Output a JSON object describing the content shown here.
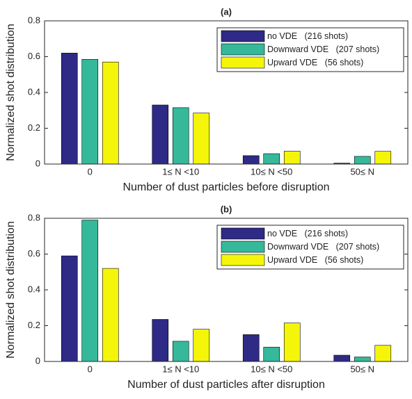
{
  "chart_data": [
    {
      "type": "bar",
      "title": "(a)",
      "x_label": "Number of dust particles before disruption",
      "y_label": "Normalized shot distribution",
      "categories": [
        "0",
        "1≤ N <10",
        "10≤ N <50",
        "50≤ N"
      ],
      "series": [
        {
          "name": "no VDE   (216 shots)",
          "color": "#2e2a86",
          "values": [
            0.62,
            0.33,
            0.047,
            0.005
          ]
        },
        {
          "name": "Downward VDE   (207 shots)",
          "color": "#35b99a",
          "values": [
            0.585,
            0.315,
            0.058,
            0.043
          ]
        },
        {
          "name": "Upward VDE   (56 shots)",
          "color": "#f5f50a",
          "values": [
            0.57,
            0.285,
            0.072,
            0.071
          ]
        }
      ],
      "ylim": [
        0,
        0.8
      ],
      "yticks": [
        0,
        0.2,
        0.4,
        0.6,
        0.8
      ],
      "legend": "upper right"
    },
    {
      "type": "bar",
      "title": "(b)",
      "x_label": "Number of dust particles after disruption",
      "y_label": "Normalized shot distribution",
      "categories": [
        "0",
        "1≤ N <10",
        "10≤ N <50",
        "50≤ N"
      ],
      "series": [
        {
          "name": "no VDE   (216 shots)",
          "color": "#2e2a86",
          "values": [
            0.59,
            0.235,
            0.15,
            0.035
          ]
        },
        {
          "name": "Downward VDE   (207 shots)",
          "color": "#35b99a",
          "values": [
            0.79,
            0.113,
            0.08,
            0.025
          ]
        },
        {
          "name": "Upward VDE   (56 shots)",
          "color": "#f5f50a",
          "values": [
            0.52,
            0.18,
            0.215,
            0.09
          ]
        }
      ],
      "ylim": [
        0,
        0.8
      ],
      "yticks": [
        0,
        0.2,
        0.4,
        0.6,
        0.8
      ],
      "legend": "upper right"
    }
  ]
}
